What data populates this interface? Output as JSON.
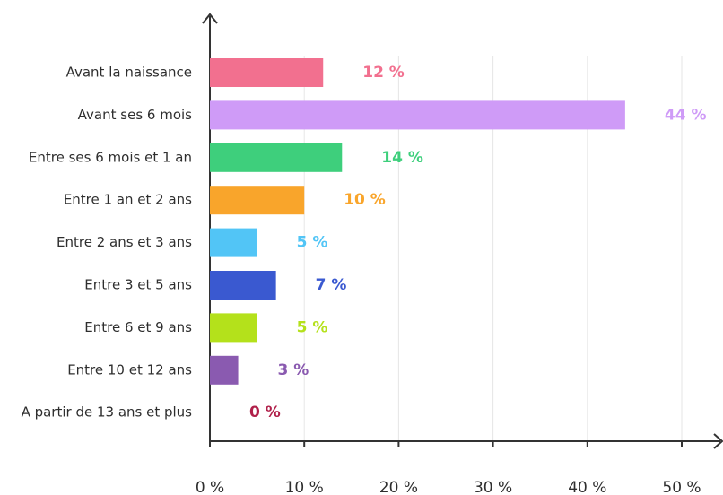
{
  "chart_data": {
    "type": "bar",
    "orientation": "horizontal",
    "categories": [
      "Avant la naissance",
      "Avant ses 6 mois",
      "Entre ses 6 mois et 1 an",
      "Entre 1 an et 2 ans",
      "Entre 2 ans et 3 ans",
      "Entre 3 et 5 ans",
      "Entre 6 et 9 ans",
      "Entre 10 et 12 ans",
      "A partir de 13 ans et plus"
    ],
    "values": [
      12,
      44,
      14,
      10,
      5,
      7,
      5,
      3,
      0
    ],
    "value_labels": [
      "12 %",
      "44 %",
      "14 %",
      "10 %",
      "5 %",
      "7 %",
      "5 %",
      "3 %",
      "0 %"
    ],
    "colors": [
      "#f2708f",
      "#cf9bf7",
      "#3ecf7c",
      "#f9a52b",
      "#52c5f6",
      "#3a59d0",
      "#b4e11b",
      "#8a5ab0",
      "#b0204a"
    ],
    "xlim": [
      0,
      50
    ],
    "xticks": [
      {
        "value": 0,
        "label": "0 %"
      },
      {
        "value": 10,
        "label": "10 %"
      },
      {
        "value": 20,
        "label": "20 %"
      },
      {
        "value": 30,
        "label": "30 %"
      },
      {
        "value": 40,
        "label": "40 %"
      },
      {
        "value": 50,
        "label": "50 %"
      }
    ],
    "grid": true
  }
}
